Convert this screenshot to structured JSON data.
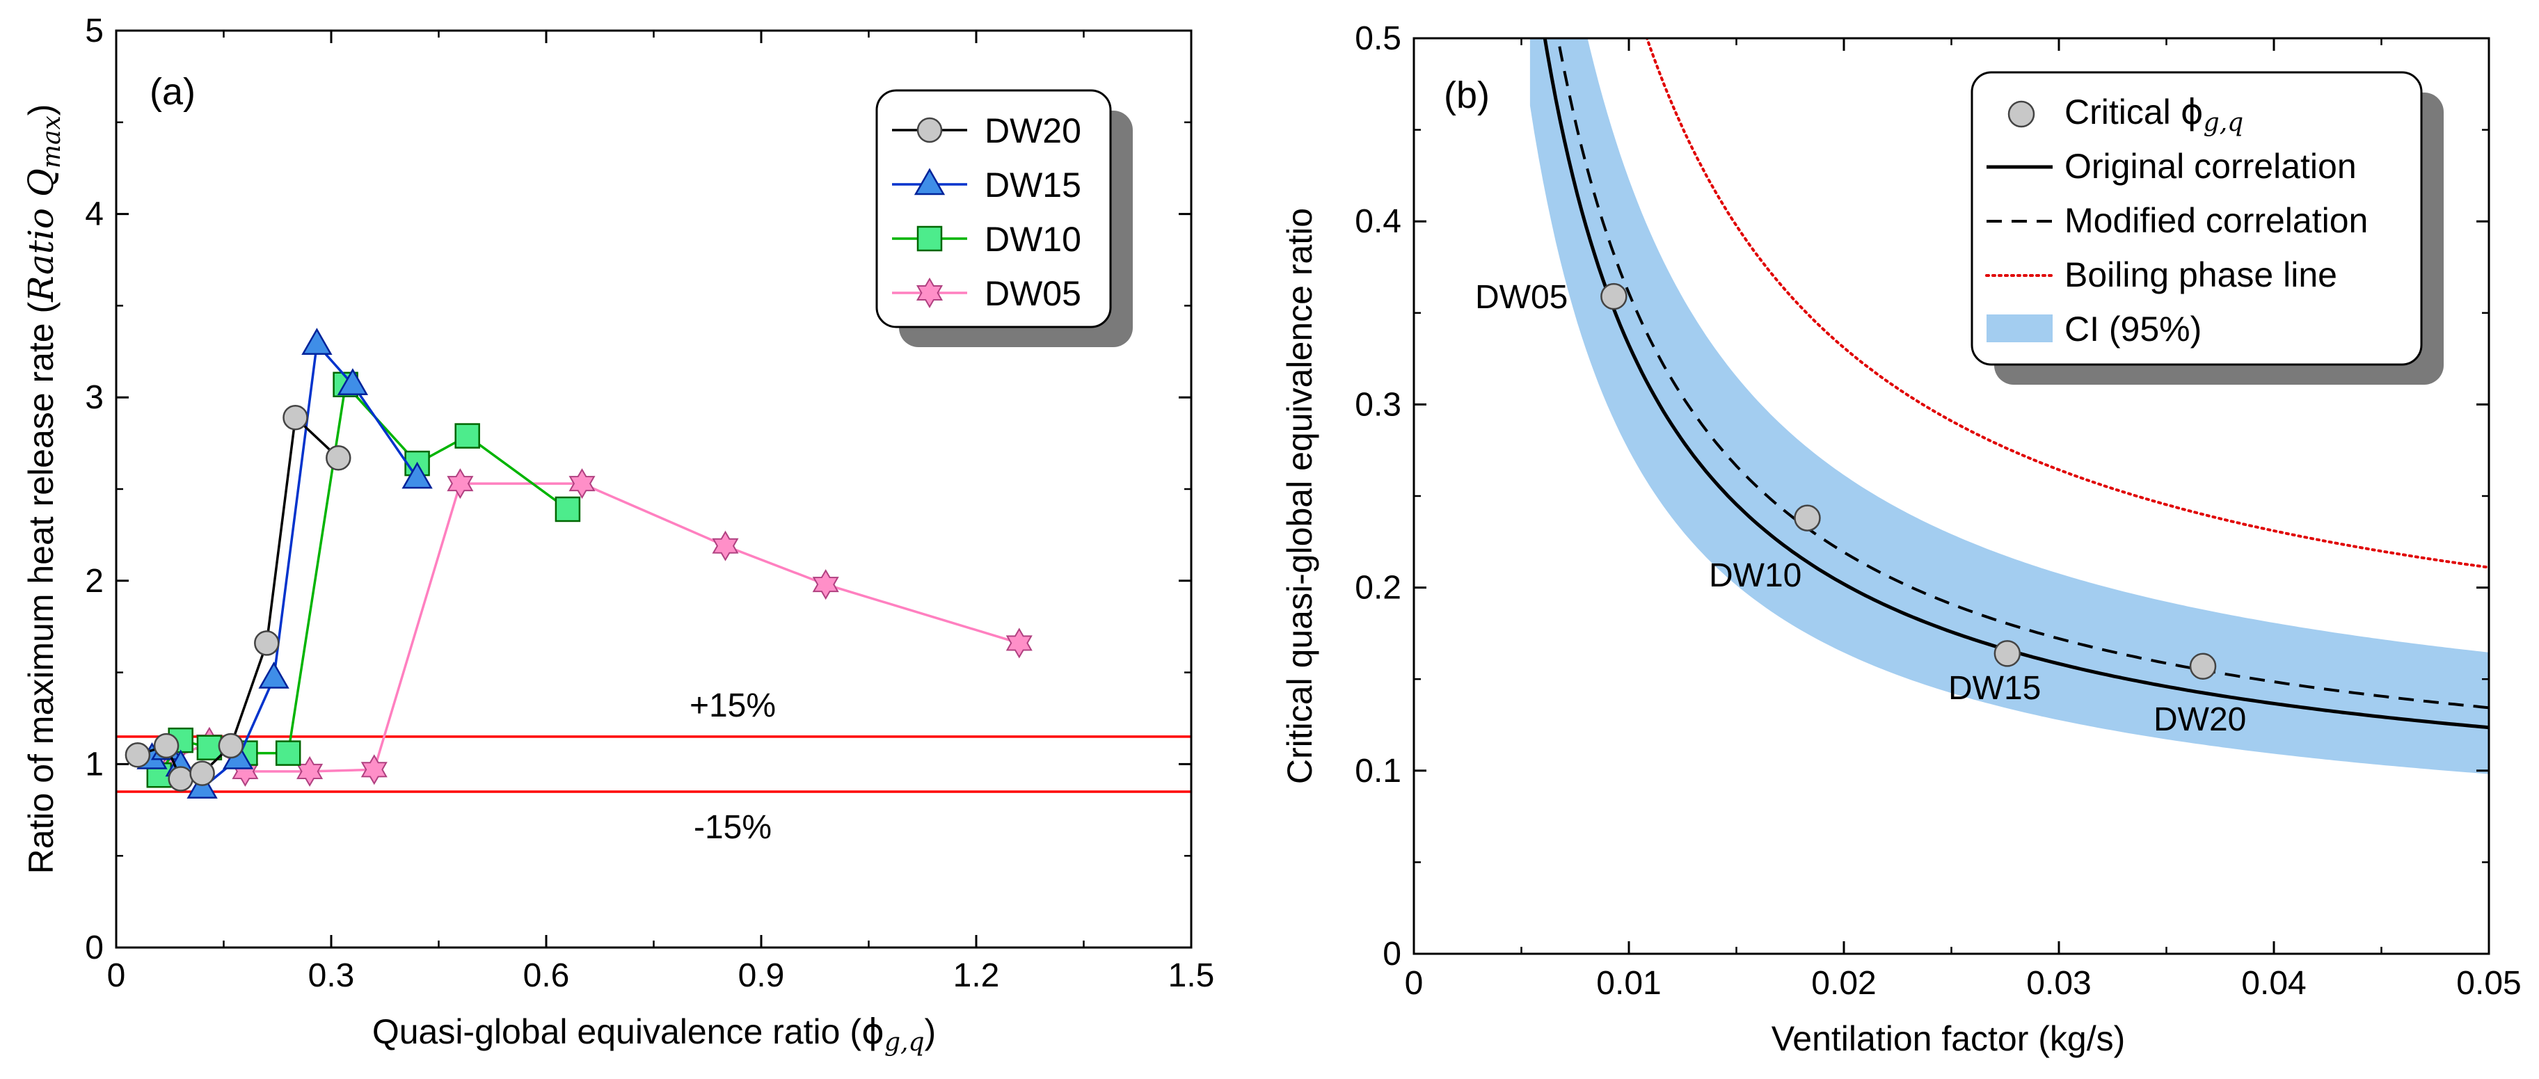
{
  "chart_data": [
    {
      "panel": "(a)",
      "type": "line",
      "xlabel": "Quasi-global equivalence ratio (",
      "xlabel_sym": "ϕ",
      "xlabel_sub": "g,q",
      "xlabel_end": ")",
      "ylabel": "Ratio of maximum heat release rate (",
      "ylabel_ital": "Ratio Q",
      "ylabel_sub": "max",
      "ylabel_end": ")",
      "xlim": [
        0,
        1.5
      ],
      "ylim": [
        0,
        5
      ],
      "xticks": [
        "0",
        "0.3",
        "0.6",
        "0.9",
        "1.2",
        "1.5"
      ],
      "xtick_values": [
        0,
        0.3,
        0.6,
        0.9,
        1.2,
        1.5
      ],
      "yticks": [
        "0",
        "1",
        "2",
        "3",
        "4",
        "5"
      ],
      "ytick_values": [
        0,
        1,
        2,
        3,
        4,
        5
      ],
      "hlines": [
        {
          "y": 1.15,
          "label": "+15%",
          "color": "#ff0000"
        },
        {
          "y": 0.85,
          "label": "-15%",
          "color": "#ff0000"
        }
      ],
      "legend_position": "top-right",
      "series": [
        {
          "name": "DW20",
          "marker": "circle",
          "color": "#000000",
          "fill": "#c8c8c8",
          "x": [
            0.03,
            0.07,
            0.09,
            0.12,
            0.16,
            0.21,
            0.25,
            0.31
          ],
          "y": [
            1.05,
            1.1,
            0.92,
            0.95,
            1.1,
            1.66,
            2.89,
            2.67
          ]
        },
        {
          "name": "DW15",
          "marker": "triangle",
          "color": "#0033cc",
          "fill": "#3f8ee8",
          "x": [
            0.05,
            0.07,
            0.09,
            0.12,
            0.17,
            0.22,
            0.28,
            0.33,
            0.42
          ],
          "y": [
            1.03,
            1.08,
            0.99,
            0.87,
            1.03,
            1.47,
            3.29,
            3.07,
            2.56
          ]
        },
        {
          "name": "DW10",
          "marker": "square",
          "color": "#00b400",
          "fill": "#4dec8c",
          "x": [
            0.06,
            0.09,
            0.13,
            0.18,
            0.24,
            0.32,
            0.42,
            0.49,
            0.63
          ],
          "y": [
            0.94,
            1.13,
            1.09,
            1.06,
            1.06,
            3.07,
            2.64,
            2.79,
            2.39
          ]
        },
        {
          "name": "DW05",
          "marker": "star",
          "color": "#ff80c0",
          "fill": "#ff8fc8",
          "x": [
            0.08,
            0.13,
            0.18,
            0.27,
            0.36,
            0.48,
            0.65,
            0.85,
            0.99,
            1.26
          ],
          "y": [
            1.03,
            1.12,
            0.96,
            0.96,
            0.97,
            2.53,
            2.53,
            2.19,
            1.98,
            1.66
          ]
        }
      ]
    },
    {
      "panel": "(b)",
      "type": "line",
      "xlabel": "Ventilation factor (kg/s)",
      "ylabel": "Critical quasi-global equivalence ratio",
      "xlim": [
        0,
        0.05
      ],
      "ylim": [
        0,
        0.5
      ],
      "xticks": [
        "0",
        "0.01",
        "0.02",
        "0.03",
        "0.04",
        "0.05"
      ],
      "xtick_values": [
        0,
        0.01,
        0.02,
        0.03,
        0.04,
        0.05
      ],
      "yticks": [
        "0",
        "0.1",
        "0.2",
        "0.3",
        "0.4",
        "0.5"
      ],
      "ytick_values": [
        0,
        0.1,
        0.2,
        0.3,
        0.4,
        0.5
      ],
      "legend_position": "top-right",
      "legend": [
        {
          "label": "Critical ",
          "label_sym": "ϕ",
          "label_sub": "g,q",
          "kind": "marker"
        },
        {
          "label": "Original correlation",
          "kind": "solid"
        },
        {
          "label": "Modified correlation",
          "kind": "dashed"
        },
        {
          "label": "Boiling phase line",
          "kind": "dotted"
        },
        {
          "label": "CI (95%)",
          "kind": "band"
        }
      ],
      "points": [
        {
          "name": "DW05",
          "x": 0.0093,
          "y": 0.359
        },
        {
          "name": "DW10",
          "x": 0.0183,
          "y": 0.238
        },
        {
          "name": "DW15",
          "x": 0.0276,
          "y": 0.164
        },
        {
          "name": "DW20",
          "x": 0.0367,
          "y": 0.157
        }
      ],
      "curves": {
        "original": {
          "a": 0.00261,
          "b": 0.0714,
          "color": "#000000"
        },
        "modified": {
          "a": 0.00283,
          "b": 0.0778,
          "color": "#000000"
        },
        "boiling": {
          "a": 0.004,
          "b": 0.131,
          "color": "#e00000"
        }
      },
      "ci_band": {
        "color": "#a3cdf0",
        "x_start": 0.0054,
        "lower": {
          "a": 0.00221,
          "b": 0.054
        },
        "upper": {
          "a": 0.00323,
          "b": 0.1
        },
        "upper_cap": 0.163,
        "top_cap": 0.5
      }
    }
  ],
  "colors": {
    "accent_red": "#ff0000",
    "ci_blue": "#a3cdf0",
    "shadow": "#7a7a7a"
  }
}
